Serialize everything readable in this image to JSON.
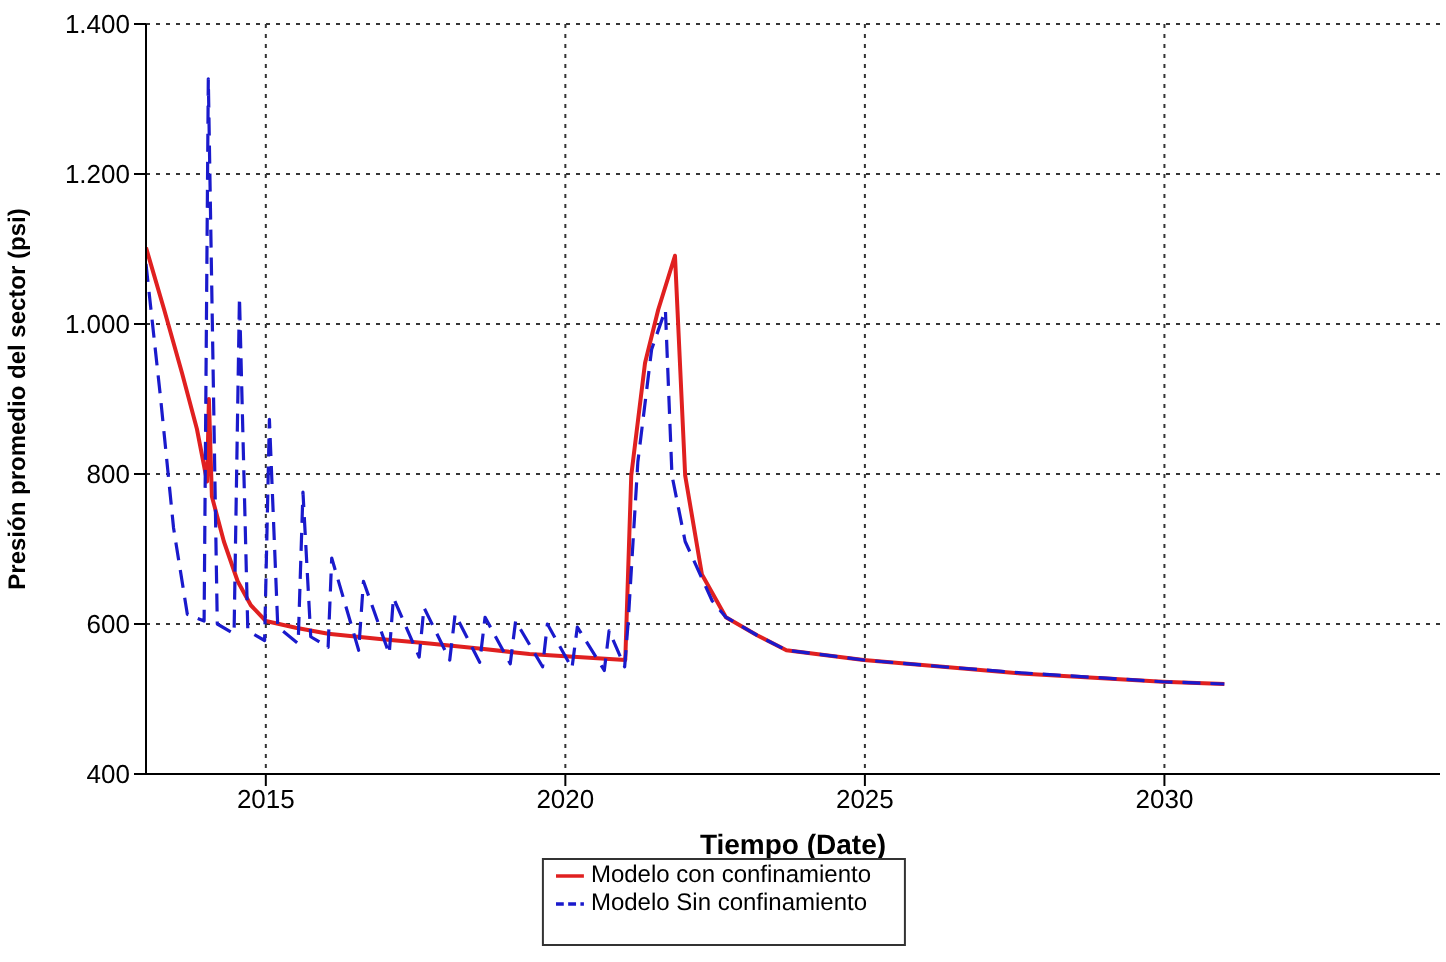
{
  "chart_data": {
    "type": "line",
    "xlabel": "Tiempo (Date)",
    "ylabel": "Presión promedio del sector (psi)",
    "xlim": [
      2013,
      2034.6
    ],
    "xticks": [
      2015,
      2020,
      2025,
      2030
    ],
    "ylim": [
      400,
      1400
    ],
    "yticks": [
      400,
      600,
      800,
      {
        "value": 1000,
        "label": "1.000"
      },
      {
        "value": 1200,
        "label": "1.200"
      },
      {
        "value": 1400,
        "label": "1.400"
      }
    ],
    "grid": true,
    "legend": "bottom",
    "series": [
      {
        "name": "Modelo con confinamiento",
        "color": "#e02020",
        "line_style": "solid",
        "x": [
          2013.0,
          2013.3,
          2013.6,
          2013.85,
          2014.02,
          2014.05,
          2014.1,
          2014.3,
          2014.53,
          2014.75,
          2015.0,
          2015.5,
          2016.04,
          2016.9,
          2017.73,
          2018.6,
          2019.4,
          2020.2,
          2021.0,
          2021.1,
          2021.33,
          2021.55,
          2021.83,
          2022.0,
          2022.28,
          2022.68,
          2023.2,
          2023.69,
          2024.98,
          2026.3,
          2027.6,
          2029.97,
          2031.0
        ],
        "values": [
          1102,
          1020,
          935,
          860,
          790,
          900,
          770,
          710,
          657,
          625,
          604,
          595,
          587,
          580,
          574,
          567,
          560,
          556,
          552,
          798,
          948,
          1019,
          1091,
          798,
          666,
          609,
          585,
          565,
          552,
          543,
          534,
          523,
          520
        ]
      },
      {
        "name": "Modelo Sin confinamiento",
        "color": "#1a1acc",
        "line_style": "dashed",
        "x": [
          2013.0,
          2013.24,
          2013.46,
          2013.69,
          2013.97,
          2014.04,
          2014.19,
          2014.47,
          2014.56,
          2014.7,
          2014.98,
          2015.06,
          2015.2,
          2015.54,
          2015.62,
          2015.75,
          2016.04,
          2016.1,
          2016.55,
          2016.63,
          2017.06,
          2017.13,
          2017.56,
          2017.64,
          2018.07,
          2018.16,
          2018.57,
          2018.66,
          2019.08,
          2019.17,
          2019.62,
          2019.7,
          2020.11,
          2020.2,
          2020.65,
          2020.73,
          2020.99,
          2021.05,
          2021.21,
          2021.44,
          2021.67,
          2021.78,
          2022.0,
          2022.45,
          2022.68,
          2023.2,
          2023.69,
          2024.98,
          2026.3,
          2027.6,
          2029.97,
          2031.0
        ],
        "values": [
          1080,
          904,
          728,
          613,
          604,
          1327,
          600,
          587,
          1036,
          591,
          578,
          873,
          596,
          574,
          776,
          583,
          569,
          688,
          565,
          657,
          560,
          635,
          556,
          622,
          552,
          613,
          549,
          609,
          547,
          604,
          543,
          600,
          541,
          596,
          538,
          591,
          543,
          604,
          816,
          966,
          1019,
          798,
          710,
          631,
          609,
          585,
          565,
          552,
          543,
          535,
          523,
          520
        ]
      }
    ]
  }
}
